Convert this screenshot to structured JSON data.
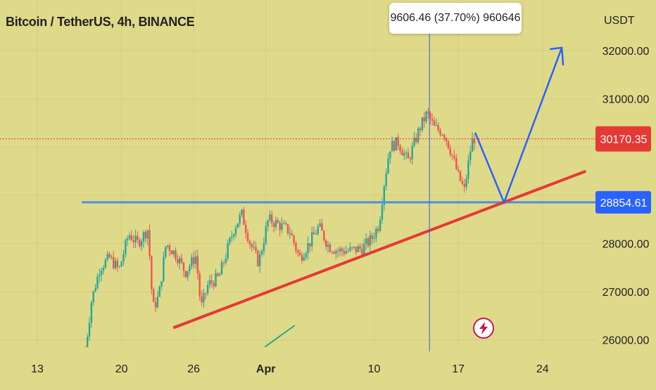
{
  "header": {
    "title": "Bitcoin / TetherUS, 4h, BINANCE",
    "unit": "USDT"
  },
  "tooltip": {
    "text": "9606.46 (37.70%) 960646"
  },
  "colors": {
    "background": "#dfd98a",
    "candle_up": "#26a69a",
    "candle_down": "#ef5350",
    "horizontal_line": "#4a90e2",
    "trendline": "#e53935",
    "projection": "#2962ff",
    "price_line": "#e53935",
    "current_price_badge": "#e53935",
    "level_badge": "#2962ff"
  },
  "icons": {
    "bolt": "lightning-bolt-icon"
  },
  "chart_data": {
    "type": "candlestick",
    "title": "Bitcoin / TetherUS, 4h, BINANCE",
    "ylabel": "USDT",
    "ylim": [
      25850,
      33050
    ],
    "y_ticks": [
      26000,
      27000,
      28000,
      29000,
      30000,
      31000,
      32000
    ],
    "y_tick_labels": [
      "26000.00",
      "27000.00",
      "28000.00",
      "",
      "",
      "31000.00",
      "32000.00"
    ],
    "x_ticks": [
      {
        "label": "13",
        "day": 13
      },
      {
        "label": "20",
        "day": 20
      },
      {
        "label": "26",
        "day": 26
      },
      {
        "label": "Apr",
        "day": 32,
        "bold": true
      },
      {
        "label": "10",
        "day": 41
      },
      {
        "label": "17",
        "day": 48
      },
      {
        "label": "24",
        "day": 55
      }
    ],
    "x_unit": "day (March 1 = day 1, continuing into April)",
    "xlim": [
      9.9,
      59.4
    ],
    "current_price": 30170.35,
    "current_price_label": "30170.35",
    "horizontal_level": 28854.61,
    "horizontal_level_label": "28854.61",
    "tooltip": "9606.46 (37.70%) 960646",
    "crosshair_day": 45.6,
    "close_path": [
      [
        17.0,
        25800
      ],
      [
        17.5,
        26800
      ],
      [
        18.2,
        27500
      ],
      [
        19.0,
        27700
      ],
      [
        19.8,
        27450
      ],
      [
        20.6,
        28200
      ],
      [
        21.3,
        28000
      ],
      [
        22.2,
        28300
      ],
      [
        22.6,
        26650
      ],
      [
        23.1,
        26900
      ],
      [
        23.7,
        28000
      ],
      [
        24.6,
        27750
      ],
      [
        25.3,
        27400
      ],
      [
        26.2,
        27750
      ],
      [
        26.6,
        26650
      ],
      [
        27.2,
        27150
      ],
      [
        28.1,
        27300
      ],
      [
        28.9,
        27950
      ],
      [
        29.4,
        28350
      ],
      [
        30.0,
        28600
      ],
      [
        30.7,
        28000
      ],
      [
        31.4,
        27600
      ],
      [
        32.2,
        28500
      ],
      [
        33.0,
        28400
      ],
      [
        34.0,
        28250
      ],
      [
        34.8,
        27700
      ],
      [
        35.6,
        28000
      ],
      [
        36.4,
        28350
      ],
      [
        37.2,
        27950
      ],
      [
        38.0,
        27850
      ],
      [
        39.0,
        27850
      ],
      [
        40.0,
        27900
      ],
      [
        40.8,
        28100
      ],
      [
        41.4,
        28400
      ],
      [
        41.8,
        29200
      ],
      [
        42.3,
        30000
      ],
      [
        43.0,
        30100
      ],
      [
        43.8,
        29700
      ],
      [
        44.8,
        30400
      ],
      [
        45.4,
        30700
      ],
      [
        46.0,
        30400
      ],
      [
        46.8,
        30300
      ],
      [
        47.4,
        29900
      ],
      [
        48.0,
        29400
      ],
      [
        48.5,
        29100
      ],
      [
        49.1,
        30100
      ],
      [
        49.4,
        30200
      ]
    ],
    "drawings": [
      {
        "name": "resistance-line",
        "type": "horizontal",
        "from_day": 16.7,
        "to_day": 59.4,
        "price": 28854.61
      },
      {
        "name": "ascending-trendline",
        "type": "trend",
        "from": [
          24.3,
          26250
        ],
        "to": [
          58.6,
          29500
        ]
      },
      {
        "name": "projection-path",
        "type": "polyline",
        "points": [
          [
            49.4,
            30300
          ],
          [
            51.8,
            28850
          ],
          [
            56.6,
            32060
          ]
        ]
      },
      {
        "name": "green-line",
        "type": "trend",
        "from": [
          31.9,
          25850
        ],
        "to": [
          34.4,
          26300
        ]
      }
    ]
  }
}
